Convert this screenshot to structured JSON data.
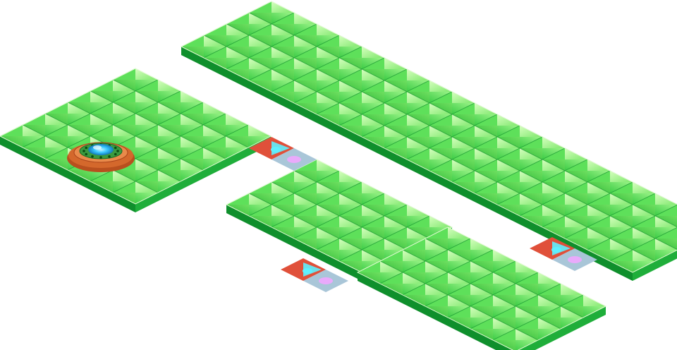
{
  "game": {
    "view": "isometric",
    "tile_style": "green-pyramid",
    "colors": {
      "tile_light": "#b8ff9c",
      "tile_mid": "#5ee05a",
      "tile_dark": "#22b02a",
      "edge_top": "#eaffd8",
      "edge_side_left": "#0f8f2c",
      "edge_side_right": "#1fae3a",
      "portal_red": "#e0503a",
      "portal_cyan": "#5ef0ff",
      "portal_pink": "#f0a6ff",
      "pad_ring": "#d4682c",
      "pad_core": "#39c8ff"
    },
    "platforms": [
      {
        "id": "platform-left",
        "tiles_x": 6,
        "tiles_y": 6
      },
      {
        "id": "platform-top-long",
        "tiles_x": 20,
        "tiles_y": 4
      },
      {
        "id": "platform-middle",
        "tiles_x": 6,
        "tiles_y": 4
      },
      {
        "id": "platform-bottom",
        "tiles_x": 7,
        "tiles_y": 4
      }
    ],
    "portals": [
      {
        "id": "portal-left-mid",
        "state": "active"
      },
      {
        "id": "portal-mid-bottom",
        "state": "active"
      },
      {
        "id": "portal-bottom-top",
        "state": "active"
      }
    ],
    "player_start_pad": {
      "icon": "teleport-pad-icon"
    }
  }
}
